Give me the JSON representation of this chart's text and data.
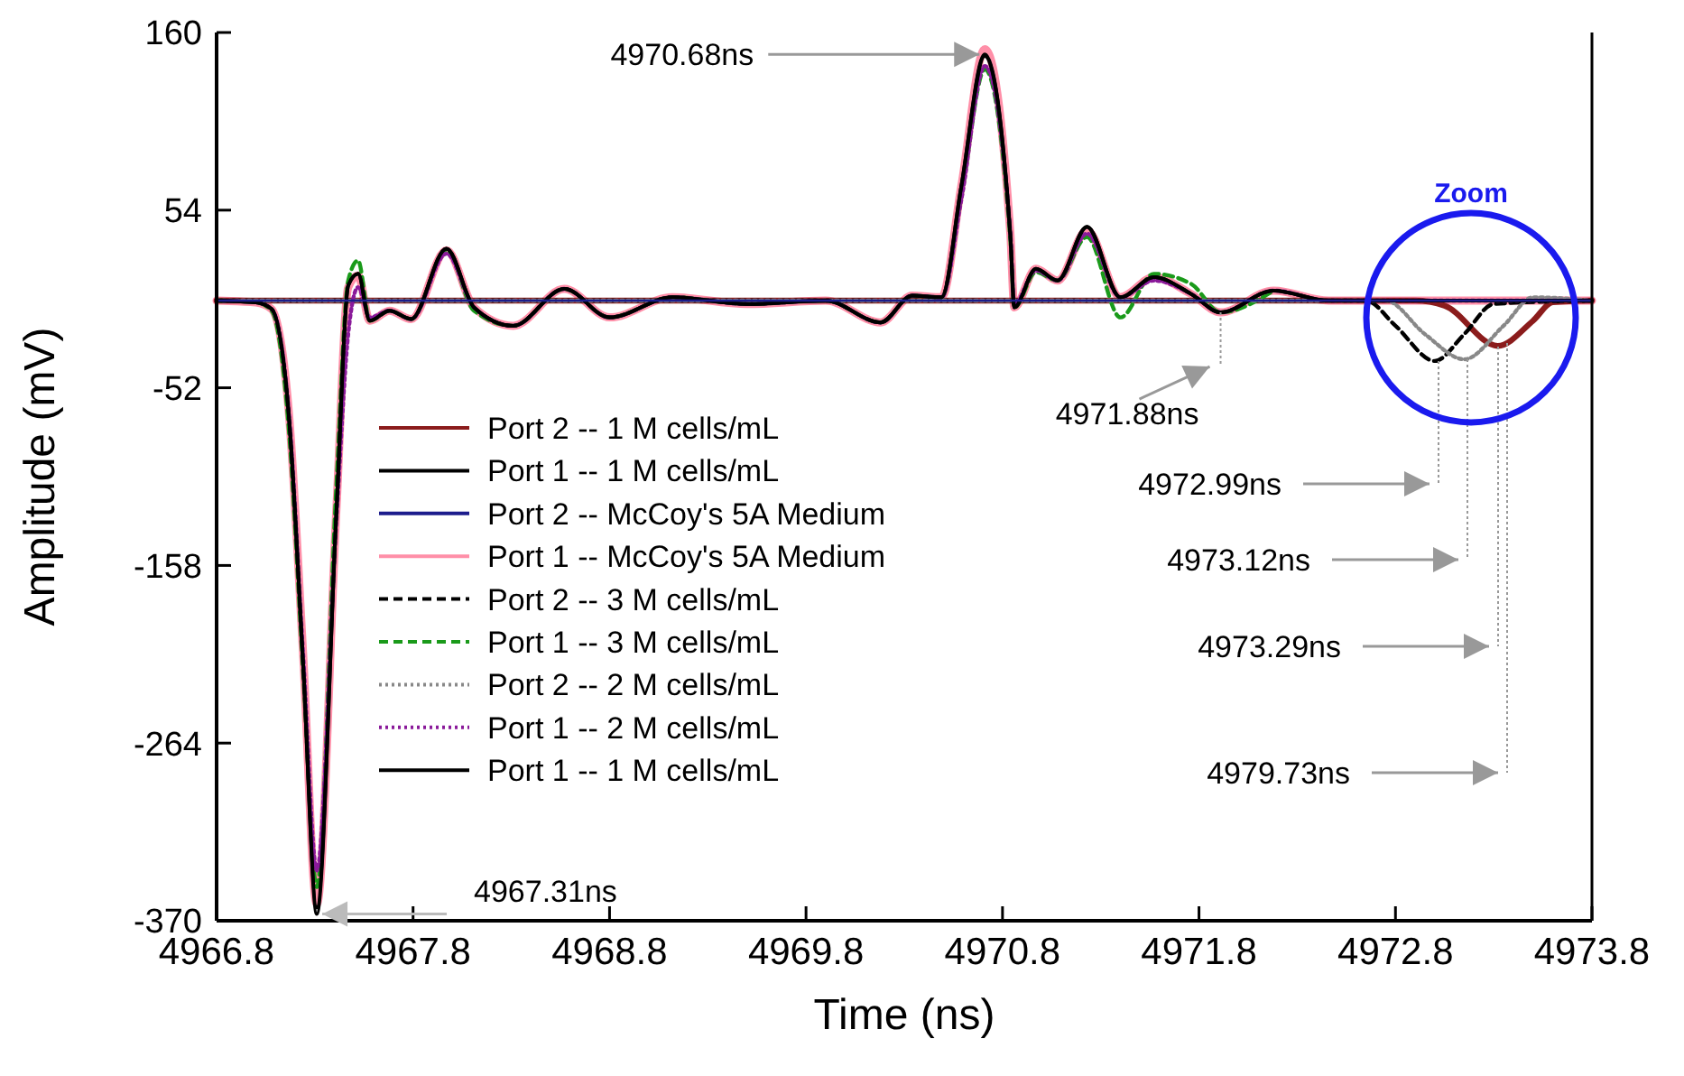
{
  "chart_data": {
    "type": "line",
    "xlabel": "Time (ns)",
    "ylabel": "Amplitude (mV)",
    "xlim": [
      4966.8,
      4973.8
    ],
    "xticks": [
      4966.8,
      4967.8,
      4968.8,
      4969.8,
      4970.8,
      4971.8,
      4972.8,
      4973.8
    ],
    "ylim": [
      -370,
      160
    ],
    "yticks": [
      -370,
      -264,
      -158,
      -52,
      54,
      160
    ],
    "grid": false,
    "legend": "left",
    "marker": "none",
    "series": [
      {
        "name": "Port 2 -- 1 M cells/mL",
        "color": "#8b1c1c",
        "line_style": "solid",
        "x": [
          4966.8,
          4972.9,
          4973.05,
          4973.32,
          4973.5,
          4973.6,
          4973.8
        ],
        "values": [
          0,
          0,
          -3,
          -27,
          -12,
          -1,
          0
        ]
      },
      {
        "name": "Port 1 -- 1 M cells/mL",
        "color": "#000000",
        "line_style": "solid",
        "x": [
          4966.8,
          4967.0,
          4967.08,
          4967.17,
          4967.24,
          4967.31,
          4967.41,
          4967.47,
          4967.52,
          4967.58,
          4967.68,
          4967.79,
          4967.97,
          4968.11,
          4968.31,
          4968.57,
          4968.8,
          4969.12,
          4969.5,
          4969.9,
          4970.18,
          4970.34,
          4970.49,
          4970.59,
          4970.71,
          4970.84,
          4970.86,
          4970.97,
          4971.08,
          4971.23,
          4971.4,
          4971.57,
          4971.76,
          4971.91,
          4972.18,
          4972.46,
          4973.0,
          4973.8
        ],
        "values": [
          0,
          -1,
          -5,
          -72,
          -216,
          -366,
          -126,
          9,
          16,
          -12,
          -6,
          -11,
          31,
          -4,
          -15,
          7,
          -10,
          2,
          -2,
          0,
          -13,
          3,
          2,
          68,
          147,
          39,
          -4,
          19,
          12,
          44,
          2,
          14,
          4,
          -7,
          6,
          0,
          0,
          0
        ]
      },
      {
        "name": "Port 2 -- McCoy's 5A Medium",
        "color": "#1c1c8c",
        "line_style": "solid",
        "x": [
          4966.8,
          4973.8
        ],
        "values": [
          0,
          0
        ]
      },
      {
        "name": "Port 1 -- McCoy's 5A Medium",
        "color": "#ff8fa8",
        "line_style": "solid",
        "x": [
          4966.8,
          4967.0,
          4967.08,
          4967.17,
          4967.24,
          4967.31,
          4967.41,
          4967.47,
          4967.52,
          4967.58,
          4967.68,
          4967.79,
          4967.97,
          4968.11,
          4968.31,
          4968.57,
          4968.8,
          4969.12,
          4969.5,
          4969.9,
          4970.18,
          4970.34,
          4970.49,
          4970.59,
          4970.71,
          4970.84,
          4970.86,
          4970.97,
          4971.08,
          4971.23,
          4971.4,
          4971.57,
          4971.76,
          4971.91,
          4972.18,
          4972.46,
          4973.0,
          4973.8
        ],
        "values": [
          0,
          -1,
          -5,
          -70,
          -210,
          -360,
          -124,
          8,
          15,
          -12,
          -6,
          -11,
          30,
          -4,
          -15,
          7,
          -10,
          2,
          -2,
          0,
          -13,
          3,
          2,
          68,
          150,
          40,
          -4,
          19,
          12,
          42,
          2,
          14,
          4,
          -7,
          6,
          0,
          0,
          0
        ]
      },
      {
        "name": "Port 2 -- 3 M cells/mL",
        "color": "#000000",
        "line_style": "dashed",
        "x": [
          4966.8,
          4972.65,
          4972.8,
          4973.0,
          4973.15,
          4973.3,
          4973.8
        ],
        "values": [
          0,
          0,
          -15,
          -36,
          -20,
          -2,
          0
        ]
      },
      {
        "name": "Port 1 -- 3 M cells/mL",
        "color": "#1a9a1a",
        "line_style": "dashed",
        "x": [
          4966.8,
          4967.0,
          4967.08,
          4967.17,
          4967.24,
          4967.31,
          4967.41,
          4967.47,
          4967.52,
          4967.58,
          4967.68,
          4967.79,
          4967.97,
          4968.11,
          4968.31,
          4968.57,
          4968.8,
          4969.12,
          4969.5,
          4969.9,
          4970.18,
          4970.34,
          4970.49,
          4970.59,
          4970.71,
          4970.84,
          4970.86,
          4970.97,
          4971.08,
          4971.23,
          4971.4,
          4971.57,
          4971.76,
          4971.91,
          4972.18
        ],
        "values": [
          0,
          -1,
          -6,
          -80,
          -220,
          -350,
          -110,
          12,
          24,
          -12,
          -6,
          -11,
          30,
          -6,
          -15,
          7,
          -10,
          2,
          -2,
          0,
          -13,
          3,
          2,
          62,
          138,
          36,
          -4,
          17,
          12,
          38,
          -10,
          16,
          10,
          -7,
          6
        ]
      },
      {
        "name": "Port 2 -- 2 M cells/mL",
        "color": "#888888",
        "line_style": "dotted",
        "x": [
          4966.8,
          4972.75,
          4972.95,
          4973.15,
          4973.35,
          4973.5,
          4973.8
        ],
        "values": [
          0,
          0,
          -20,
          -35,
          -15,
          2,
          0
        ]
      },
      {
        "name": "Port 1 -- 2 M cells/mL",
        "color": "#8a1a9a",
        "line_style": "dotted",
        "x": [
          4966.8,
          4967.0,
          4967.08,
          4967.17,
          4967.24,
          4967.31,
          4967.41,
          4967.47,
          4967.52,
          4967.58,
          4967.68,
          4967.79,
          4967.97,
          4968.11,
          4968.31,
          4968.57,
          4968.8,
          4969.12,
          4969.5,
          4969.9,
          4970.18,
          4970.34,
          4970.49,
          4970.59,
          4970.71,
          4970.84,
          4970.86,
          4970.97,
          4971.08,
          4971.23,
          4971.4,
          4971.57,
          4971.76,
          4971.91,
          4972.18,
          4972.46,
          4973.0,
          4973.8
        ],
        "values": [
          0,
          -1,
          -5,
          -70,
          -210,
          -340,
          -130,
          -20,
          8,
          -10,
          -6,
          -11,
          28,
          -4,
          -15,
          7,
          -10,
          2,
          -2,
          0,
          -13,
          3,
          2,
          60,
          140,
          40,
          -2,
          18,
          12,
          40,
          2,
          12,
          4,
          -7,
          6,
          0,
          0,
          0
        ]
      },
      {
        "name": "Port 1 -- 1 M cells/mL",
        "color": "#000000",
        "line_style": "solid",
        "x": [
          4966.8,
          4967.0,
          4967.08,
          4967.17,
          4967.24,
          4967.31,
          4967.41,
          4967.47,
          4967.52,
          4967.58,
          4967.68,
          4967.79,
          4967.97,
          4968.11,
          4968.31,
          4968.57,
          4968.8,
          4969.12,
          4969.5,
          4969.9,
          4970.18,
          4970.34,
          4970.49,
          4970.59,
          4970.71,
          4970.84,
          4970.86,
          4970.97,
          4971.08,
          4971.23,
          4971.4,
          4971.57,
          4971.76,
          4971.91,
          4972.18,
          4972.46,
          4973.0,
          4973.8
        ],
        "values": [
          0,
          -1,
          -5,
          -72,
          -216,
          -362,
          -126,
          9,
          16,
          -12,
          -6,
          -11,
          31,
          -4,
          -15,
          7,
          -10,
          2,
          -2,
          0,
          -13,
          3,
          2,
          68,
          146,
          39,
          -4,
          19,
          12,
          44,
          2,
          14,
          4,
          -7,
          6,
          0,
          0,
          0
        ]
      }
    ],
    "annotations": [
      {
        "text": "4970.68ns",
        "x": 4970.71,
        "y": 147
      },
      {
        "text": "4967.31ns",
        "x": 4967.31,
        "y": -366
      },
      {
        "text": "4971.88ns",
        "x": 4971.91,
        "y": -7
      },
      "4972.99ns",
      "4973.12ns",
      "4973.29ns",
      "4979.73ns",
      "Zoom"
    ]
  }
}
